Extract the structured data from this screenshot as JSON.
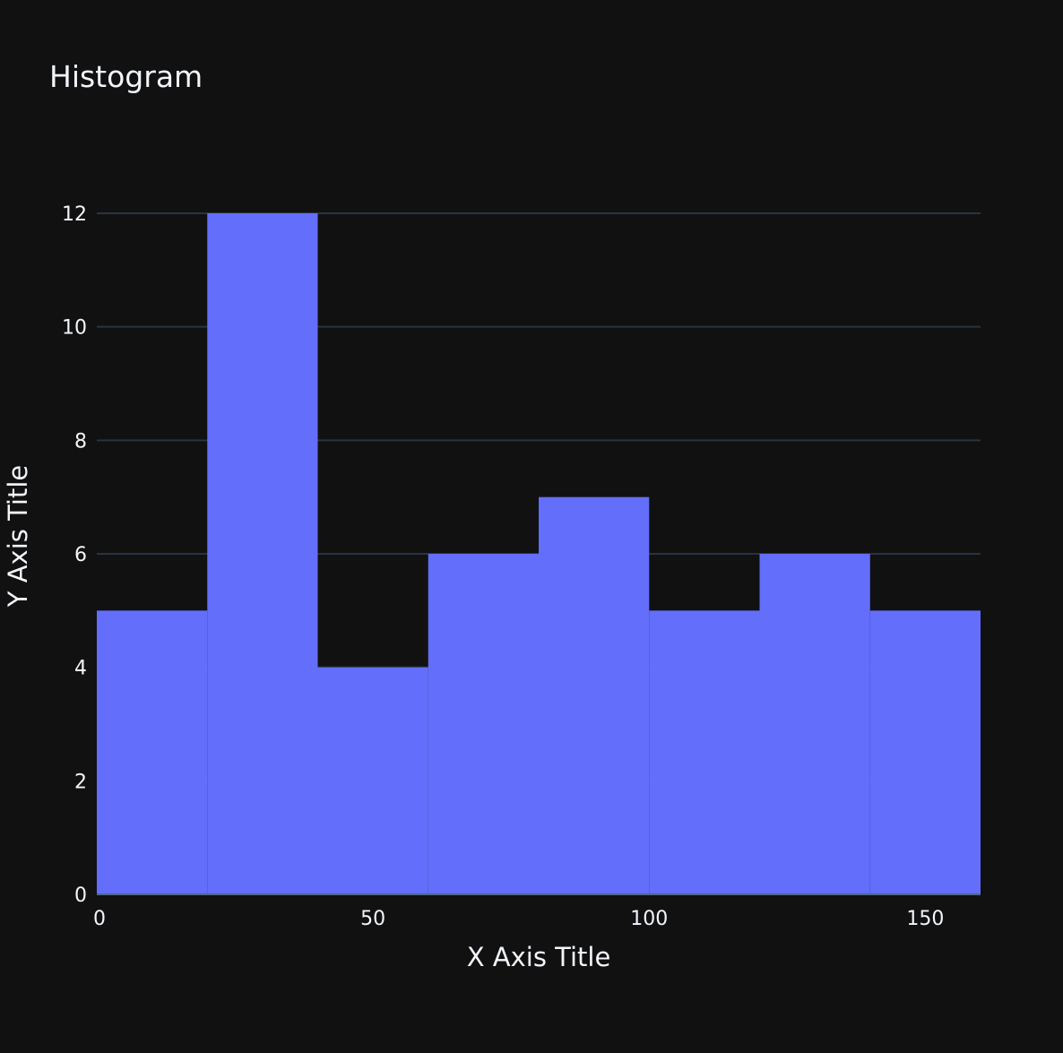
{
  "chart_data": {
    "type": "bar",
    "title": "Histogram",
    "xlabel": "X Axis Title",
    "ylabel": "Y Axis Title",
    "bins": [
      {
        "start": 0,
        "end": 20,
        "count": 5
      },
      {
        "start": 20,
        "end": 40,
        "count": 12
      },
      {
        "start": 40,
        "end": 60,
        "count": 4
      },
      {
        "start": 60,
        "end": 80,
        "count": 6
      },
      {
        "start": 80,
        "end": 100,
        "count": 7
      },
      {
        "start": 100,
        "end": 120,
        "count": 5
      },
      {
        "start": 120,
        "end": 140,
        "count": 6
      },
      {
        "start": 140,
        "end": 160,
        "count": 5
      }
    ],
    "xlim": [
      0,
      160
    ],
    "ylim": [
      0,
      12
    ],
    "xticks": [
      0,
      50,
      100,
      150
    ],
    "yticks": [
      0,
      2,
      4,
      6,
      8,
      10,
      12
    ],
    "grid": true,
    "colors": {
      "background": "#111111",
      "bar": "#636efa",
      "grid": "#283442",
      "axis_line": "#506784",
      "text": "#f2f5fa"
    }
  }
}
